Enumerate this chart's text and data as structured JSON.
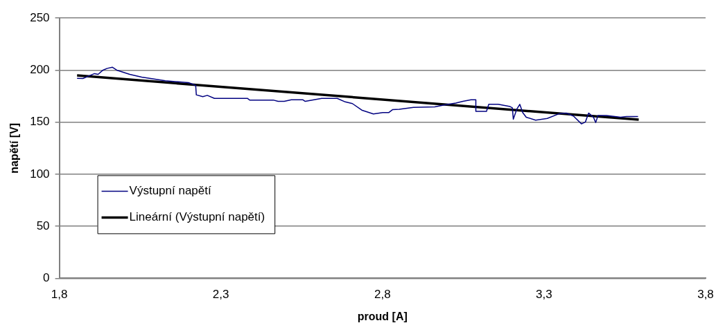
{
  "chart_data": {
    "type": "line",
    "xlabel": "proud [A]",
    "ylabel": "napětí [V]",
    "xlim": [
      1.8,
      3.8
    ],
    "xticks": [
      {
        "value": 1.8,
        "label": "1,8"
      },
      {
        "value": 2.3,
        "label": "2,3"
      },
      {
        "value": 2.8,
        "label": "2,8"
      },
      {
        "value": 3.3,
        "label": "3,3"
      },
      {
        "value": 3.8,
        "label": "3,8"
      }
    ],
    "ylim": [
      0,
      250
    ],
    "yticks": [
      0,
      50,
      100,
      150,
      200,
      250
    ],
    "grid": "y",
    "legend": "bottom left",
    "marker": "none",
    "line_style": "solid",
    "series": [
      {
        "name": "Výstupní napětí",
        "color": "#000080",
        "x": [
          1.855,
          1.873,
          1.909,
          1.92,
          1.935,
          1.948,
          1.964,
          1.978,
          2.018,
          2.055,
          2.128,
          2.2,
          2.222,
          2.224,
          2.244,
          2.258,
          2.28,
          2.382,
          2.389,
          2.462,
          2.477,
          2.496,
          2.518,
          2.554,
          2.561,
          2.612,
          2.66,
          2.685,
          2.707,
          2.736,
          2.772,
          2.801,
          2.82,
          2.831,
          2.852,
          2.896,
          2.962,
          2.991,
          3.027,
          3.049,
          3.074,
          3.089,
          3.089,
          3.096,
          3.122,
          3.129,
          3.158,
          3.195,
          3.202,
          3.205,
          3.216,
          3.225,
          3.234,
          3.245,
          3.274,
          3.31,
          3.347,
          3.369,
          3.391,
          3.416,
          3.428,
          3.438,
          3.453,
          3.46,
          3.467,
          3.493,
          3.537,
          3.555,
          3.591
        ],
        "values": [
          192.2,
          192,
          196.7,
          196,
          200,
          201.7,
          202.8,
          200,
          196,
          193.3,
          189.9,
          188,
          185.4,
          176.3,
          174.5,
          175.8,
          172.9,
          172.9,
          171.3,
          171.3,
          170,
          170,
          171.5,
          171.5,
          170,
          172.9,
          172.9,
          169.5,
          167.9,
          161.6,
          157.9,
          159.3,
          159.3,
          162,
          162.4,
          164.3,
          164.7,
          166.5,
          168.4,
          170.1,
          171.5,
          171.5,
          160.4,
          160.4,
          160.4,
          167.2,
          167.2,
          165,
          163.8,
          152.9,
          162.7,
          167.2,
          159.3,
          154.8,
          152,
          153.6,
          158.2,
          158.8,
          155.9,
          148.4,
          150.2,
          158.8,
          154.8,
          149.7,
          156.5,
          156.5,
          154.8,
          155.4,
          155.4
        ]
      },
      {
        "name": "Lineární (Výstupní napětí)",
        "color": "#000000",
        "x": [
          1.855,
          3.593
        ],
        "values": [
          194.9,
          152.4
        ]
      }
    ]
  }
}
